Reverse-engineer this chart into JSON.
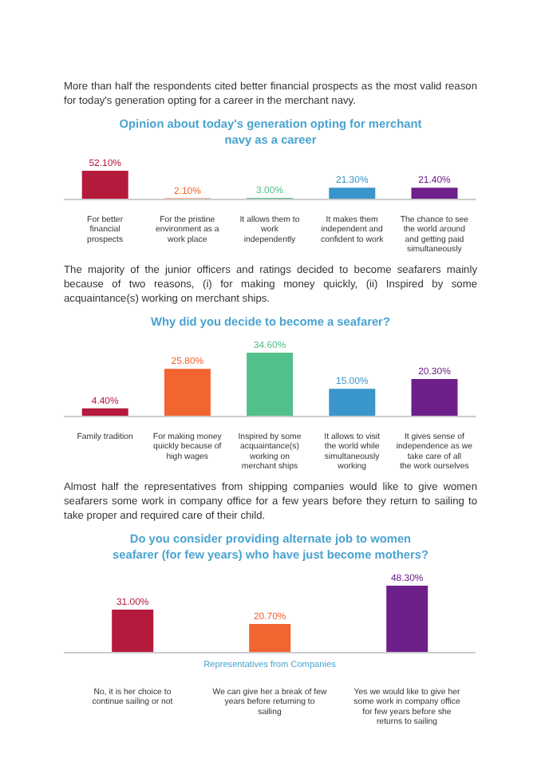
{
  "chart_data": [
    {
      "type": "bar",
      "annotations": [
        "More than half the respondents cited better financial prospects as the most valid reason for today's generation opting for a career in the merchant navy."
      ],
      "title": "Opinion about today's generation opting for merchant navy as a career",
      "categories": [
        "For better financial prospects",
        "For the pristine environment as a work place",
        "It allows them to work independently",
        "It makes them independent and confident to work",
        "The chance to see the world around and getting paid simultaneously"
      ],
      "values": [
        52.1,
        2.1,
        3.0,
        21.3,
        21.4
      ],
      "value_labels": [
        "52.10%",
        "2.10%",
        "3.00%",
        "21.30%",
        "21.40%"
      ],
      "colors": [
        "#b5193b",
        "#f26430",
        "#52c08a",
        "#3a95cb",
        "#6d1f8a"
      ],
      "grid": false,
      "legend": false
    },
    {
      "type": "bar",
      "annotations": [
        "The majority of the junior officers and ratings decided to become seafarers mainly because of two reasons, (i) for making money quickly, (ii) Inspired by some acquaintance(s) working on merchant ships."
      ],
      "title": "Why did you decide to become a seafarer?",
      "categories": [
        "Family tradition",
        "For making money quickly because of high wages",
        "Inspired by some acquaintance(s) working on merchant ships",
        "It allows to visit the world while simultaneously working",
        "It gives sense of independence as we take care of all the work ourselves"
      ],
      "values": [
        4.4,
        25.8,
        34.6,
        15.0,
        20.3
      ],
      "value_labels": [
        "4.40%",
        "25.80%",
        "34.60%",
        "15.00%",
        "20.30%"
      ],
      "colors": [
        "#b5193b",
        "#f26430",
        "#52c08a",
        "#3a95cb",
        "#6d1f8a"
      ],
      "grid": false,
      "legend": false
    },
    {
      "type": "bar",
      "annotations": [
        "Almost half the representatives from shipping companies would like to give women seafarers some work in company office for a few years before they return to sailing to take proper and required care of their child."
      ],
      "title": "Do you consider providing alternate job to women seafarer (for few years) who have just become mothers?",
      "xlabel": "Representatives from Companies",
      "categories": [
        "No, it is her choice to continue sailing or not",
        "We can give her a break of few years before returning to sailing",
        "Yes we would like to give her some work in company office for few years before she returns to sailing"
      ],
      "values": [
        31.0,
        20.7,
        48.3
      ],
      "value_labels": [
        "31.00%",
        "20.70%",
        "48.30%"
      ],
      "colors": [
        "#b5193b",
        "#f26430",
        "#6d1f8a"
      ],
      "grid": false,
      "legend": false
    }
  ]
}
